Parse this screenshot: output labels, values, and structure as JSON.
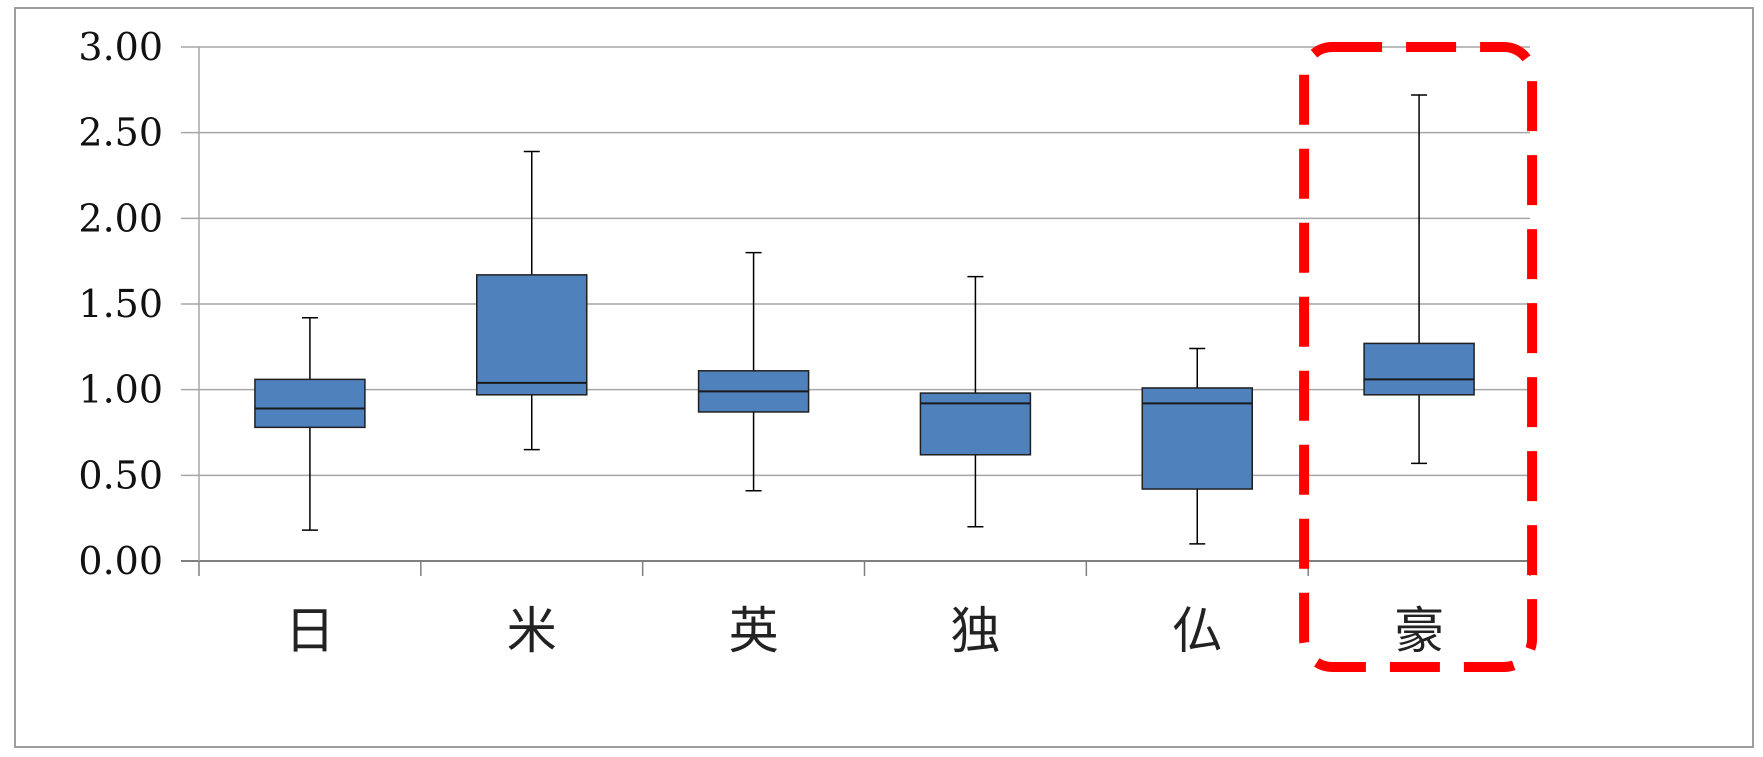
{
  "chart_data": {
    "type": "boxplot",
    "categories": [
      "日",
      "米",
      "英",
      "独",
      "仏",
      "豪"
    ],
    "boxes": [
      {
        "category": "日",
        "min": 0.18,
        "q1": 0.78,
        "median": 0.89,
        "q3": 1.06,
        "max": 1.42
      },
      {
        "category": "米",
        "min": 0.65,
        "q1": 0.97,
        "median": 1.04,
        "q3": 1.67,
        "max": 2.39
      },
      {
        "category": "英",
        "min": 0.41,
        "q1": 0.87,
        "median": 0.99,
        "q3": 1.11,
        "max": 1.8
      },
      {
        "category": "独",
        "min": 0.2,
        "q1": 0.62,
        "median": 0.92,
        "q3": 0.98,
        "max": 1.66
      },
      {
        "category": "仏",
        "min": 0.1,
        "q1": 0.42,
        "median": 0.92,
        "q3": 1.01,
        "max": 1.24
      },
      {
        "category": "豪",
        "min": 0.57,
        "q1": 0.97,
        "median": 1.06,
        "q3": 1.27,
        "max": 2.72
      }
    ],
    "yticks": [
      "0.00",
      "0.50",
      "1.00",
      "1.50",
      "2.00",
      "2.50",
      "3.00"
    ],
    "ylim": [
      0,
      3
    ],
    "grid": true,
    "box_color": "#4f81bd",
    "highlight": {
      "category": "豪",
      "style": "dashed-rounded-rectangle",
      "color": "#ff0000"
    }
  }
}
